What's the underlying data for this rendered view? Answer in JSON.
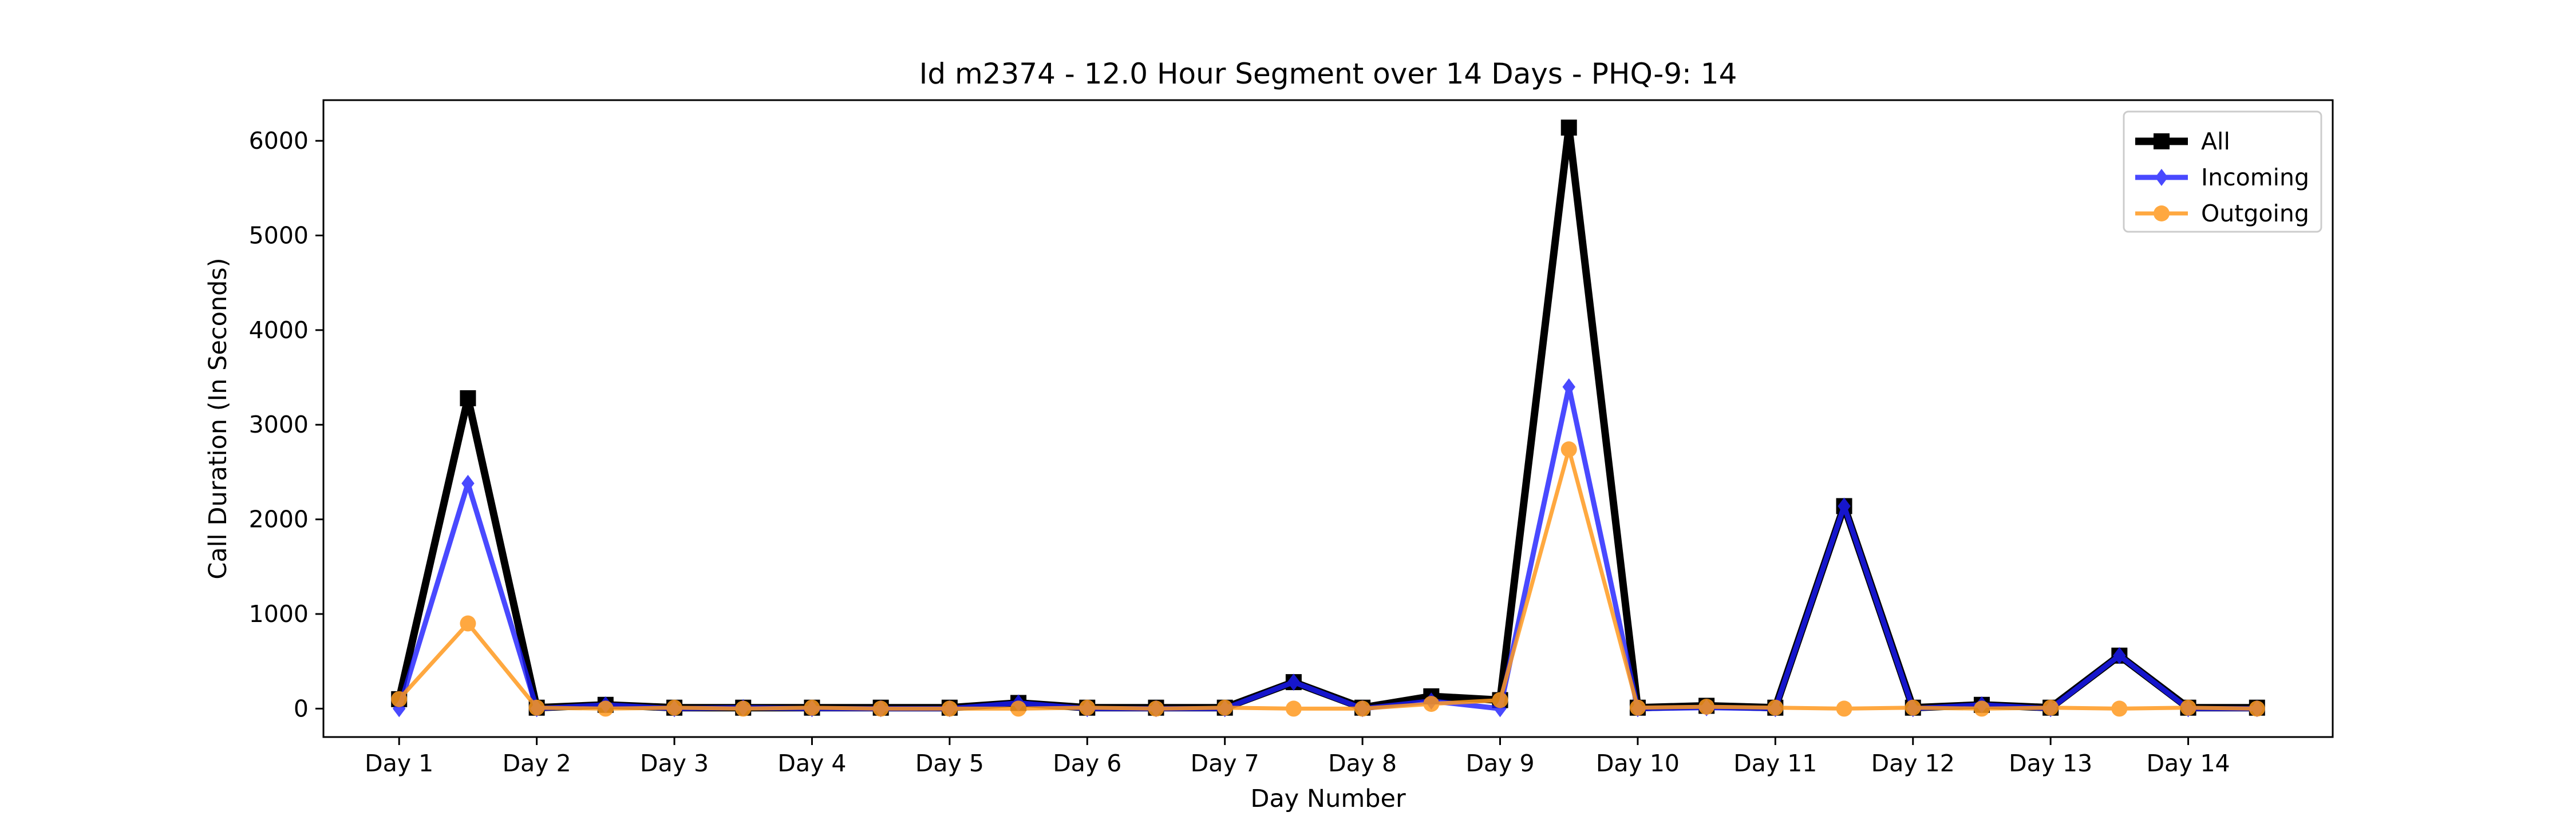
{
  "chart_data": {
    "type": "line",
    "title": "Id m2374 - 12.0 Hour Segment over 14 Days - PHQ-9: 14",
    "xlabel": "Day Number",
    "ylabel": "Call Duration (In Seconds)",
    "x": [
      1,
      1.5,
      2,
      2.5,
      3,
      3.5,
      4,
      4.5,
      5,
      5.5,
      6,
      6.5,
      7,
      7.5,
      8,
      8.5,
      9,
      9.5,
      10,
      10.5,
      11,
      11.5,
      12,
      12.5,
      13,
      13.5,
      14,
      14.5
    ],
    "xticks": [
      1,
      2,
      3,
      4,
      5,
      6,
      7,
      8,
      9,
      10,
      11,
      12,
      13,
      14
    ],
    "xtick_labels": [
      "Day 1",
      "Day 2",
      "Day 3",
      "Day 4",
      "Day 5",
      "Day 6",
      "Day 7",
      "Day 8",
      "Day 9",
      "Day 10",
      "Day 11",
      "Day 12",
      "Day 13",
      "Day 14"
    ],
    "yticks": [
      0,
      1000,
      2000,
      3000,
      4000,
      5000,
      6000
    ],
    "ytick_labels": [
      "0",
      "1000",
      "2000",
      "3000",
      "4000",
      "5000",
      "6000"
    ],
    "xlim": [
      0.45,
      15.05
    ],
    "ylim": [
      -300,
      6430
    ],
    "grid": false,
    "legend_position": "upper-right",
    "series": [
      {
        "name": "All",
        "color": "#000000",
        "marker": "square",
        "values": [
          100,
          3280,
          10,
          40,
          10,
          10,
          10,
          10,
          10,
          60,
          10,
          10,
          10,
          280,
          10,
          130,
          90,
          6140,
          10,
          30,
          10,
          2140,
          10,
          40,
          10,
          560,
          10,
          10
        ]
      },
      {
        "name": "Incoming",
        "color": "#1c1cff",
        "marker": "diamond",
        "values": [
          0,
          2380,
          0,
          40,
          0,
          10,
          0,
          0,
          0,
          60,
          0,
          0,
          0,
          280,
          0,
          80,
          0,
          3400,
          0,
          10,
          0,
          2140,
          0,
          40,
          0,
          560,
          0,
          0
        ]
      },
      {
        "name": "Outgoing",
        "color": "#ff9a1f",
        "marker": "circle",
        "values": [
          100,
          900,
          10,
          0,
          10,
          0,
          10,
          0,
          0,
          0,
          10,
          0,
          10,
          0,
          0,
          50,
          90,
          2740,
          10,
          20,
          10,
          0,
          10,
          0,
          10,
          0,
          10,
          0
        ]
      }
    ]
  }
}
